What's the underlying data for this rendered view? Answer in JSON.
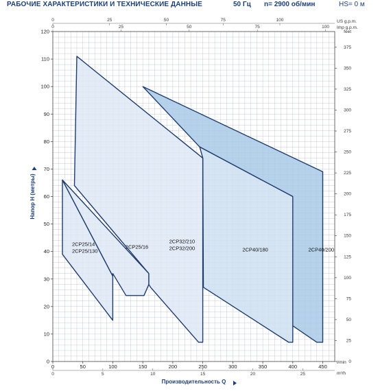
{
  "header": {
    "title": "РАБОЧИЕ ХАРАКТЕРИСТИКИ И ТЕХНИЧЕСКИЕ ДАННЫЕ",
    "frequency": "50 Гц",
    "speed": "n= 2900 об/мин",
    "hs": "HS= 0 м"
  },
  "colors": {
    "line": "#1f3c6e",
    "grid": "#b9bec6",
    "region_light": "#dde8f4",
    "region_mid": "#cddff0",
    "region_dark": "#a9c9e6",
    "title": "#1d3f78"
  },
  "chart_data": {
    "type": "area",
    "xlabel": "Производительность Q",
    "ylabel": "Напор H (метры)",
    "x_units": "l/min",
    "x_alt_units_bottom": "m³/h",
    "x_alt_units_top_1": "US g.p.m.",
    "x_alt_units_top_2": "Imp g.p.m.",
    "y_alt_units": "feet",
    "xlim": [
      0,
      470
    ],
    "ylim": [
      0,
      120
    ],
    "x_ticks": [
      0,
      50,
      100,
      150,
      200,
      250,
      300,
      350,
      400,
      450
    ],
    "y_ticks": [
      0,
      10,
      20,
      30,
      40,
      50,
      60,
      70,
      80,
      90,
      100,
      110,
      120
    ],
    "m3h_ticks": [
      0,
      5,
      10,
      15,
      20,
      25
    ],
    "usgpm_ticks": [
      0,
      25,
      50,
      75,
      100
    ],
    "impgpm_ticks": [
      0,
      25,
      50,
      75,
      100
    ],
    "feet_ticks": [
      0,
      25,
      50,
      75,
      100,
      125,
      150,
      175,
      200,
      225,
      250,
      275,
      300,
      325,
      350,
      375
    ],
    "series": [
      {
        "name": "2CP25/14\n2CP25/130",
        "label_lines": [
          "2CP25/14",
          "2CP25/130"
        ],
        "label_at": [
          32,
          42
        ],
        "outline": [
          [
            16,
            66
          ],
          [
            100,
            31
          ],
          [
            100,
            15
          ],
          [
            16,
            39
          ]
        ],
        "fill": "light"
      },
      {
        "name": "2CP25/16",
        "label_lines": [
          "2CP25/16"
        ],
        "label_at": [
          121,
          41
        ],
        "outline": [
          [
            16,
            66
          ],
          [
            160,
            32
          ],
          [
            160,
            28
          ],
          [
            152,
            24
          ],
          [
            122,
            24
          ],
          [
            100,
            32
          ],
          [
            100,
            31
          ]
        ],
        "fill": "light"
      },
      {
        "name": "2CP32/210\n2CP32/200",
        "label_lines": [
          "2CP32/210",
          "2CP32/200"
        ],
        "label_at": [
          194,
          43
        ],
        "outline": [
          [
            40,
            111
          ],
          [
            250,
            74
          ],
          [
            250,
            7
          ],
          [
            243,
            7
          ],
          [
            163,
            27
          ],
          [
            160,
            28
          ],
          [
            160,
            32
          ],
          [
            36,
            64
          ]
        ],
        "fill": "light"
      },
      {
        "name": "2CP40/180",
        "label_lines": [
          "2CP40/180"
        ],
        "label_at": [
          316,
          40
        ],
        "outline": [
          [
            245,
            78
          ],
          [
            400,
            60
          ],
          [
            400,
            7
          ],
          [
            393,
            7
          ],
          [
            251,
            27
          ],
          [
            250,
            74
          ]
        ],
        "fill": "mid"
      },
      {
        "name": "2CP40/200",
        "label_lines": [
          "2CP40/200"
        ],
        "label_at": [
          426,
          40
        ],
        "outline": [
          [
            150,
            100
          ],
          [
            450,
            69
          ],
          [
            450,
            7
          ],
          [
            440,
            7
          ],
          [
            400,
            13
          ],
          [
            400,
            60
          ],
          [
            245,
            78
          ]
        ],
        "fill": "dark"
      }
    ]
  }
}
